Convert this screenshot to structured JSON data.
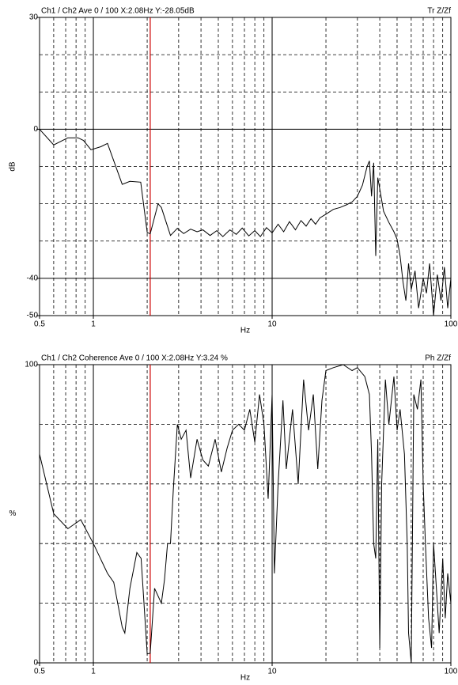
{
  "chart_data": [
    {
      "type": "line",
      "header_left": "Ch1 / Ch2  Ave 0 / 100  X:2.08Hz  Y:-28.05dB",
      "header_right": "Tr Z/Zf",
      "xlabel": "Hz",
      "ylabel": "dB",
      "xlog": true,
      "xlim": [
        0.5,
        100
      ],
      "xticks": [
        0.5,
        1,
        10,
        100
      ],
      "xminor": [
        0.6,
        0.7,
        0.8,
        0.9,
        2,
        3,
        4,
        5,
        6,
        7,
        8,
        9,
        20,
        30,
        40,
        50,
        60,
        70,
        80,
        90
      ],
      "ylim": [
        -50,
        30
      ],
      "yticks": [
        30,
        0,
        -40,
        -50
      ],
      "yminor": [
        20,
        10,
        -10,
        -20,
        -30
      ],
      "cursor_x": 2.08,
      "cursor_color": "#cc0000",
      "color": "#000000",
      "x": [
        0.5,
        0.6,
        0.72,
        0.82,
        0.88,
        0.97,
        1.1,
        1.2,
        1.45,
        1.6,
        1.84,
        2.0,
        2.08,
        2.3,
        2.4,
        2.7,
        2.95,
        3.2,
        3.5,
        3.8,
        4.1,
        4.5,
        4.9,
        5.3,
        5.8,
        6.3,
        6.8,
        7.4,
        8.0,
        8.6,
        9.3,
        10,
        10.8,
        11.6,
        12.5,
        13.5,
        14.5,
        15.5,
        16.5,
        17.5,
        18.5,
        20,
        22,
        24,
        26,
        28,
        30,
        32,
        34,
        35,
        36,
        37,
        38,
        39,
        40,
        42,
        45,
        48,
        50,
        52,
        54,
        56,
        58,
        60,
        63,
        66,
        70,
        73,
        76,
        80,
        84,
        88,
        92,
        96,
        100
      ],
      "values": [
        0,
        -4.2,
        -2.3,
        -2.3,
        -3,
        -5.5,
        -4.7,
        -3.8,
        -14.8,
        -14,
        -14.2,
        -27.7,
        -28.05,
        -20,
        -21,
        -28.5,
        -26.6,
        -28,
        -26.8,
        -27.5,
        -27,
        -28.5,
        -27.2,
        -28.8,
        -27,
        -28.2,
        -26.5,
        -28.6,
        -27.2,
        -28.8,
        -26.4,
        -27.8,
        -25.5,
        -27.5,
        -24.8,
        -27,
        -24.5,
        -26,
        -24,
        -25.5,
        -23.8,
        -22.8,
        -21.5,
        -21,
        -20.3,
        -19.5,
        -18,
        -15,
        -10,
        -8.5,
        -18,
        -9,
        -34,
        -13,
        -16,
        -22,
        -25,
        -27.5,
        -29.5,
        -34,
        -41,
        -46,
        -36,
        -43,
        -38,
        -48,
        -40,
        -44,
        -36,
        -50,
        -39,
        -46,
        -37,
        -48,
        -40
      ]
    },
    {
      "type": "line",
      "header_left": "Ch1 / Ch2  Coherence Ave 0 / 100  X:2.08Hz  Y:3.24 %",
      "header_right": "Ph Z/Zf",
      "xlabel": "Hz",
      "ylabel": "%",
      "xlog": true,
      "xlim": [
        0.5,
        100
      ],
      "xticks": [
        0.5,
        1,
        10,
        100
      ],
      "xminor": [
        0.6,
        0.7,
        0.8,
        0.9,
        2,
        3,
        4,
        5,
        6,
        7,
        8,
        9,
        20,
        30,
        40,
        50,
        60,
        70,
        80,
        90
      ],
      "ylim": [
        0,
        100
      ],
      "yticks": [
        100,
        0
      ],
      "yminor": [
        80,
        60,
        40,
        20
      ],
      "cursor_x": 2.08,
      "cursor_color": "#cc0000",
      "color": "#000000",
      "x": [
        0.5,
        0.6,
        0.72,
        0.85,
        1.0,
        1.2,
        1.3,
        1.45,
        1.5,
        1.6,
        1.75,
        1.85,
        2.0,
        2.08,
        2.2,
        2.4,
        2.5,
        2.6,
        2.7,
        2.8,
        2.95,
        3.1,
        3.3,
        3.5,
        3.8,
        4.1,
        4.4,
        4.8,
        5.2,
        5.6,
        6.0,
        6.5,
        7,
        7.5,
        8,
        8.5,
        9,
        9.5,
        10,
        10.3,
        10.8,
        11.5,
        12,
        13,
        14,
        15,
        16,
        17,
        18,
        19,
        20,
        22,
        25,
        28,
        30,
        33,
        35,
        36,
        37,
        38,
        39,
        40,
        41,
        43,
        45,
        48,
        50,
        52,
        55,
        57,
        58,
        60,
        62,
        65,
        68,
        70,
        72,
        75,
        78,
        80,
        83,
        86,
        90,
        93,
        96,
        100
      ],
      "values": [
        70,
        50,
        45,
        48,
        40,
        30,
        27,
        12,
        10,
        25,
        37,
        35,
        3,
        3.24,
        25,
        20,
        28,
        40,
        40,
        58,
        80,
        75,
        78,
        62,
        75,
        68,
        66,
        75,
        64,
        72,
        78,
        80,
        78,
        85,
        74,
        90,
        80,
        55,
        90,
        30,
        60,
        88,
        65,
        85,
        60,
        95,
        78,
        90,
        65,
        88,
        98,
        99,
        100,
        98,
        99,
        96,
        90,
        70,
        40,
        35,
        75,
        5,
        60,
        95,
        80,
        96,
        78,
        85,
        70,
        40,
        10,
        0,
        90,
        85,
        95,
        60,
        40,
        15,
        5,
        40,
        25,
        10,
        35,
        15,
        30,
        20
      ]
    }
  ]
}
